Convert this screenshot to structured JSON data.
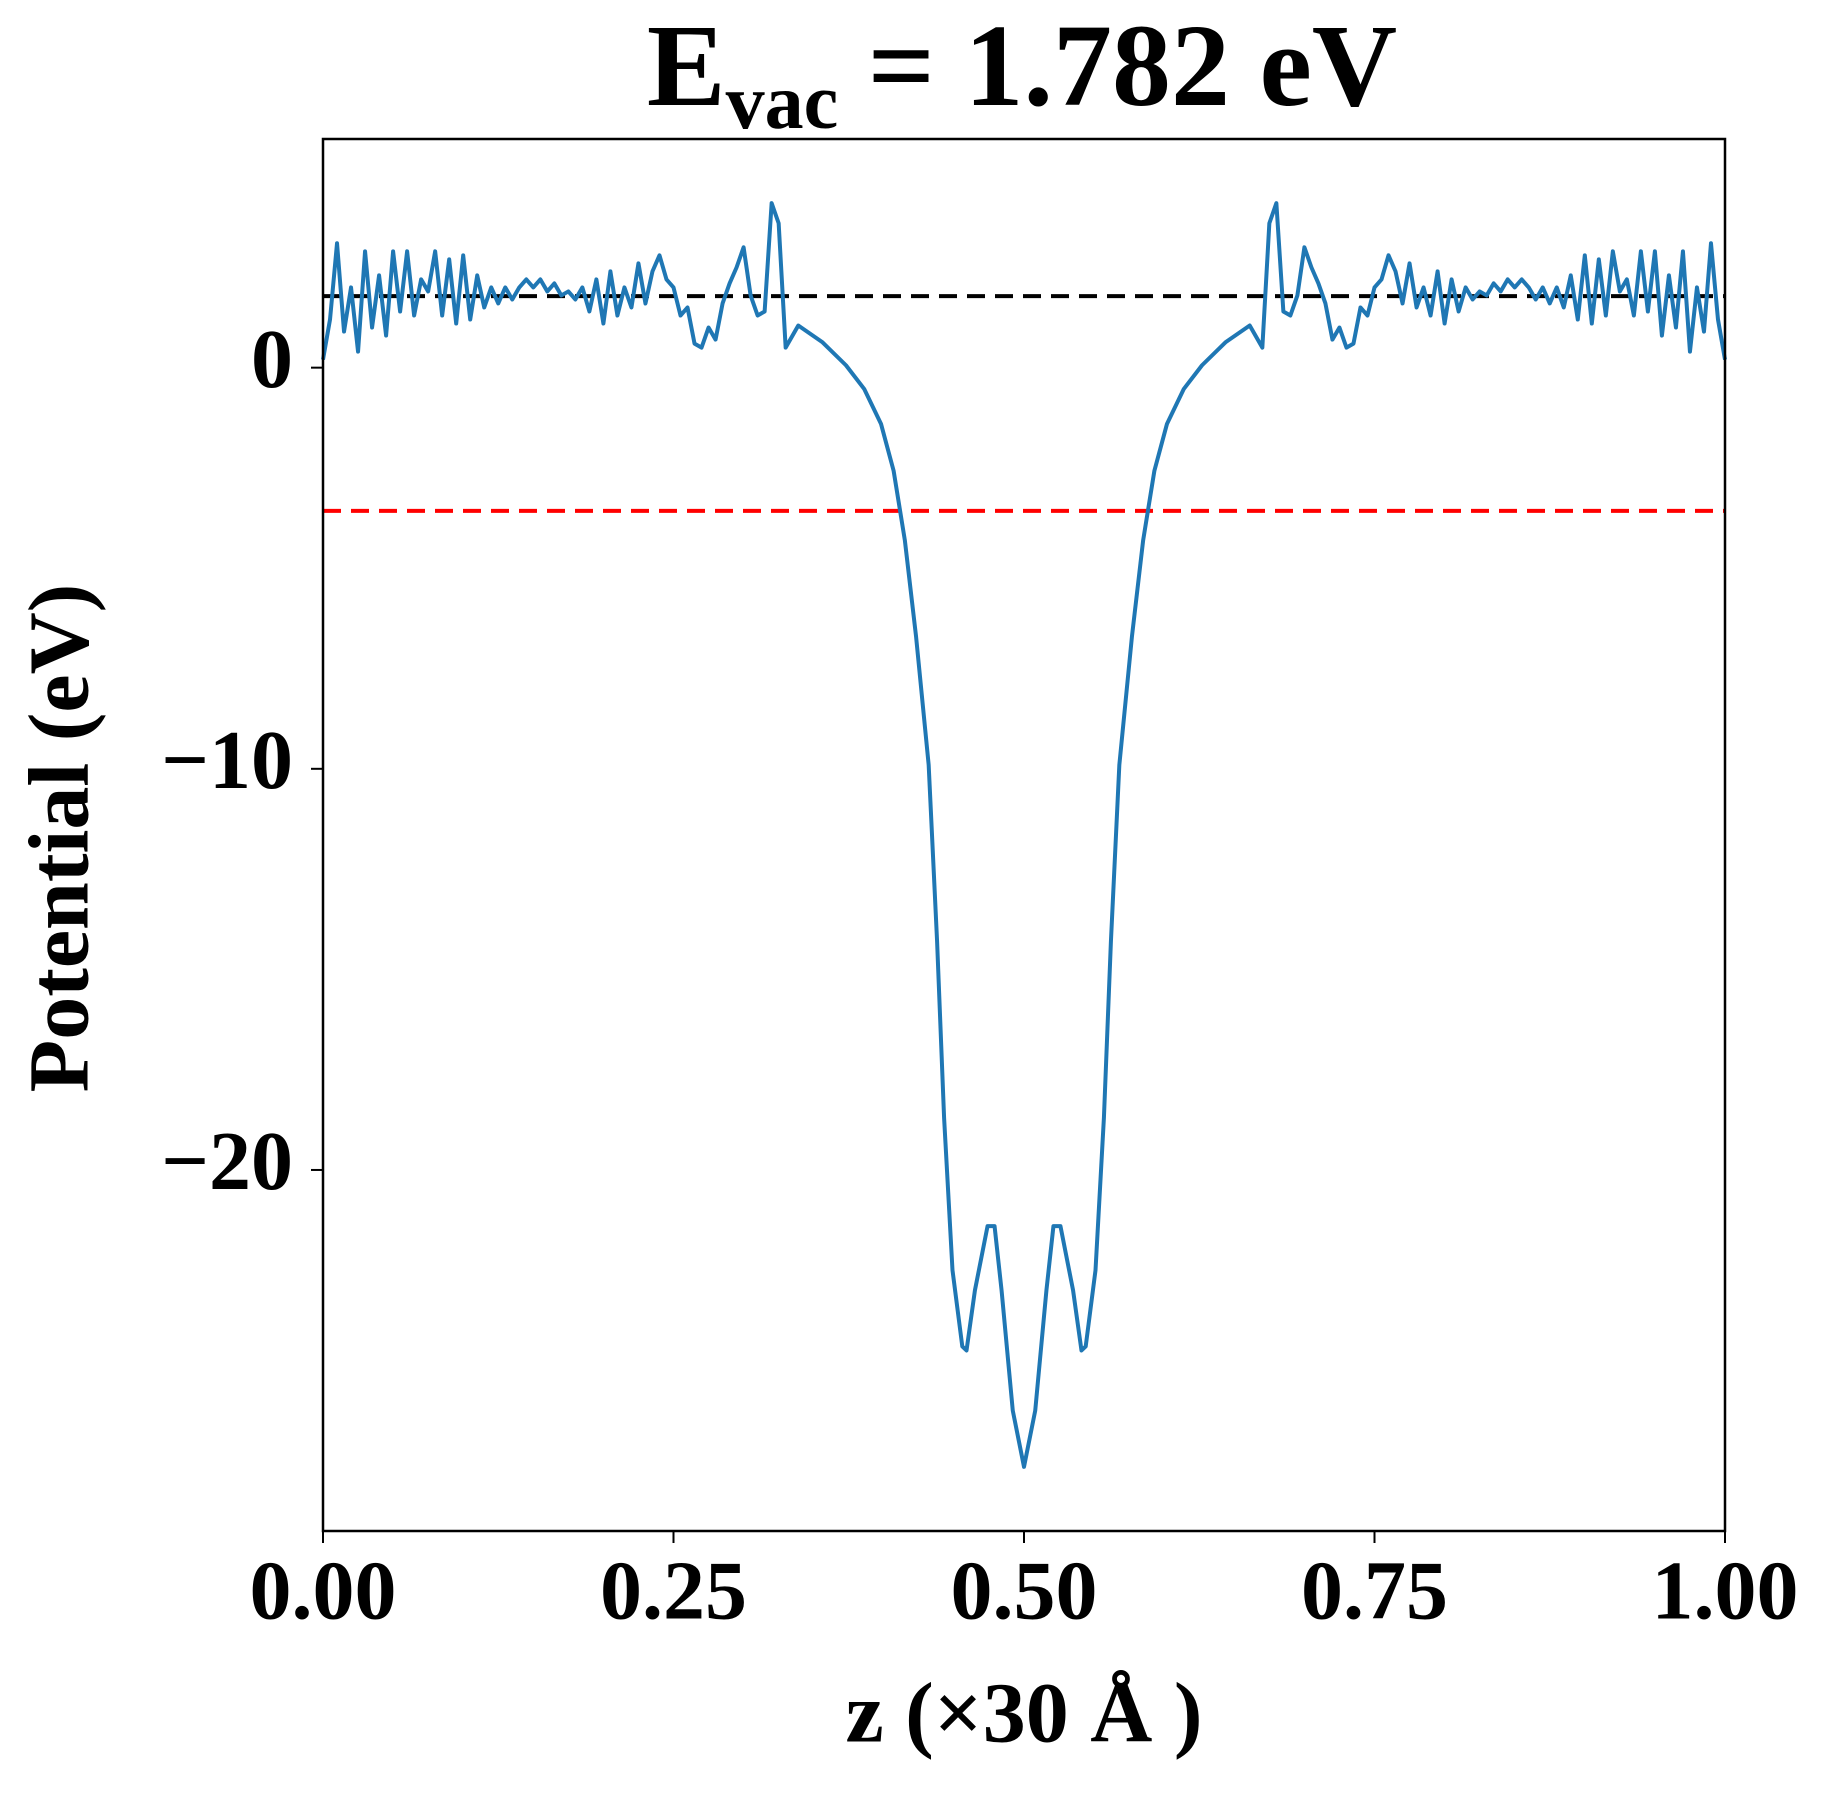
{
  "chart_data": {
    "type": "line",
    "title": "E",
    "title_subscript": "vac",
    "title_suffix": " = 1.782 eV",
    "xlabel": "z (×30 Å )",
    "ylabel": "Potential (eV)",
    "xlim": [
      0,
      1
    ],
    "ylim": [
      -29,
      5.7
    ],
    "xticks": [
      {
        "value": 0,
        "label": "0.00"
      },
      {
        "value": 0.25,
        "label": "0.25"
      },
      {
        "value": 0.5,
        "label": "0.50"
      },
      {
        "value": 0.75,
        "label": "0.75"
      },
      {
        "value": 1,
        "label": "1.00"
      }
    ],
    "yticks": [
      0,
      {
        "value": -10,
        "label": "−10"
      },
      {
        "value": -20,
        "label": "−20"
      }
    ],
    "hlines": [
      {
        "value": 1.782,
        "color": "#000000"
      },
      {
        "value": -3.57,
        "color": "#ff0000"
      }
    ],
    "x": [
      0,
      0.005,
      0.01,
      0.015,
      0.02,
      0.025,
      0.03,
      0.035,
      0.04,
      0.045,
      0.05,
      0.055,
      0.06,
      0.065,
      0.07,
      0.075,
      0.08,
      0.085,
      0.09,
      0.095,
      0.1,
      0.105,
      0.11,
      0.115,
      0.12,
      0.125,
      0.13,
      0.135,
      0.14,
      0.145,
      0.15,
      0.155,
      0.16,
      0.165,
      0.17,
      0.175,
      0.18,
      0.185,
      0.19,
      0.195,
      0.2,
      0.205,
      0.21,
      0.215,
      0.22,
      0.225,
      0.23,
      0.235,
      0.24,
      0.245,
      0.25,
      0.255,
      0.26,
      0.265,
      0.27,
      0.275,
      0.28,
      0.285,
      0.29,
      0.295,
      0.3,
      0.305,
      0.31,
      0.315,
      0.32,
      0.325,
      0.33,
      0.339,
      0.356,
      0.373,
      0.386,
      0.398,
      0.407,
      0.415,
      0.423,
      0.432,
      0.438,
      0.443,
      0.449,
      0.456,
      0.459,
      0.465,
      0.474,
      0.479,
      0.484,
      0.492,
      0.5,
      0.508,
      0.516,
      0.521,
      0.526,
      0.535,
      0.541,
      0.544,
      0.551,
      0.557,
      0.562,
      0.568,
      0.577,
      0.585,
      0.593,
      0.602,
      0.614,
      0.627,
      0.644,
      0.661,
      0.67,
      0.675,
      0.68,
      0.685,
      0.69,
      0.695,
      0.7,
      0.705,
      0.71,
      0.715,
      0.72,
      0.725,
      0.73,
      0.735,
      0.74,
      0.745,
      0.75,
      0.755,
      0.76,
      0.765,
      0.77,
      0.775,
      0.78,
      0.785,
      0.79,
      0.795,
      0.8,
      0.805,
      0.81,
      0.815,
      0.82,
      0.825,
      0.83,
      0.835,
      0.84,
      0.845,
      0.85,
      0.855,
      0.86,
      0.865,
      0.87,
      0.875,
      0.88,
      0.885,
      0.89,
      0.895,
      0.9,
      0.905,
      0.91,
      0.915,
      0.92,
      0.925,
      0.93,
      0.935,
      0.94,
      0.945,
      0.95,
      0.955,
      0.96,
      0.965,
      0.97,
      0.975,
      0.98,
      0.985,
      0.99,
      0.995,
      1.0
    ],
    "series": [
      {
        "color": "#1f77b4",
        "values": [
          0.2,
          1.2,
          3.1,
          0.9,
          2.0,
          0.4,
          2.9,
          1.0,
          2.3,
          0.8,
          2.9,
          1.4,
          2.9,
          1.3,
          2.2,
          1.9,
          2.9,
          1.3,
          2.7,
          1.1,
          2.8,
          1.2,
          2.3,
          1.5,
          2.0,
          1.6,
          2.0,
          1.7,
          2.0,
          2.2,
          2.0,
          2.2,
          1.9,
          2.1,
          1.8,
          1.9,
          1.7,
          2.0,
          1.4,
          2.2,
          1.1,
          2.4,
          1.3,
          2.0,
          1.5,
          2.6,
          1.6,
          2.4,
          2.8,
          2.2,
          2.0,
          1.3,
          1.5,
          0.6,
          0.5,
          1.0,
          0.7,
          1.6,
          2.1,
          2.5,
          3.0,
          1.8,
          1.3,
          1.4,
          4.1,
          3.6,
          0.5,
          1.05,
          0.64,
          0.06,
          -0.53,
          -1.4,
          -2.57,
          -4.3,
          -6.7,
          -9.9,
          -14.3,
          -18.7,
          -22.5,
          -24.4,
          -24.5,
          -23.0,
          -21.4,
          -21.4,
          -23.0,
          -26.0,
          -27.4,
          -26.0,
          -23.0,
          -21.4,
          -21.4,
          -23.0,
          -24.5,
          -24.4,
          -22.5,
          -18.7,
          -14.3,
          -9.9,
          -6.7,
          -4.3,
          -2.57,
          -1.4,
          -0.53,
          0.06,
          0.64,
          1.05,
          0.5,
          3.6,
          4.1,
          1.4,
          1.3,
          1.8,
          3.0,
          2.5,
          2.1,
          1.6,
          0.7,
          1.0,
          0.5,
          0.6,
          1.5,
          1.3,
          2.0,
          2.2,
          2.8,
          2.4,
          1.6,
          2.6,
          1.5,
          2.0,
          1.3,
          2.4,
          1.1,
          2.2,
          1.4,
          2.0,
          1.7,
          1.9,
          1.8,
          2.1,
          1.9,
          2.2,
          2.0,
          2.2,
          2.0,
          1.7,
          2.0,
          1.6,
          2.0,
          1.5,
          2.3,
          1.2,
          2.8,
          1.1,
          2.7,
          1.3,
          2.9,
          1.9,
          2.2,
          1.3,
          2.9,
          1.4,
          2.9,
          0.8,
          2.3,
          1.0,
          2.9,
          0.4,
          2.0,
          0.9,
          3.1,
          1.2,
          0.2
        ]
      }
    ]
  }
}
